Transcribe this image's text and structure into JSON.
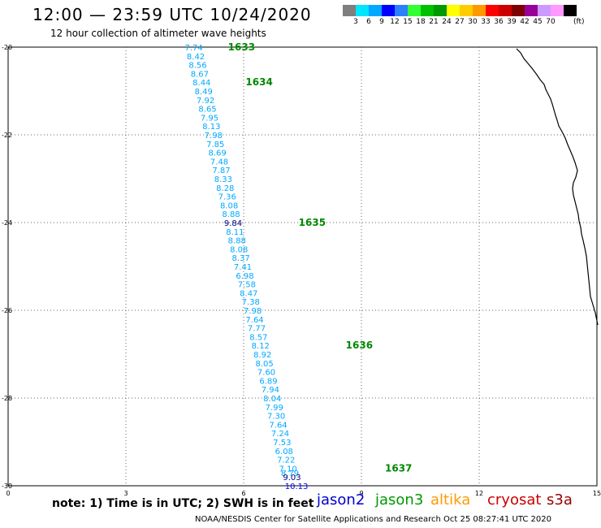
{
  "title": "12:00 — 23:59 UTC 10/24/2020",
  "subtitle": "12 hour collection of altimeter wave heights",
  "legend": {
    "colors": [
      "#7f7f7f",
      "#00e5ff",
      "#00a8ff",
      "#0000ff",
      "#2a80ff",
      "#33ff33",
      "#00c000",
      "#009900",
      "#ffff00",
      "#ffcc00",
      "#ff9900",
      "#ff0000",
      "#cc0000",
      "#800000",
      "#990099",
      "#cc99ff",
      "#ff99ff",
      "#000000"
    ],
    "labels": [
      "3",
      "6",
      "9",
      "12",
      "15",
      "18",
      "21",
      "24",
      "27",
      "30",
      "33",
      "36",
      "39",
      "42",
      "45",
      "70"
    ],
    "unit": "(ft)"
  },
  "axes": {
    "x_ticks": [
      "0",
      "3",
      "6",
      "9",
      "12",
      "15"
    ],
    "y_ticks": [
      "-20",
      "-22",
      "-24",
      "-26",
      "-28",
      "-30"
    ]
  },
  "chart_data": {
    "type": "scatter",
    "xlim": [
      0,
      15
    ],
    "ylim": [
      -30,
      -20
    ],
    "grid": true,
    "points": [
      {
        "x": 4.5,
        "y": -20.0,
        "v": "7.74",
        "c": "#00a8ff"
      },
      {
        "x": 4.55,
        "y": -20.2,
        "v": "8.42",
        "c": "#00a8ff"
      },
      {
        "x": 4.6,
        "y": -20.4,
        "v": "8.56",
        "c": "#00a8ff"
      },
      {
        "x": 4.65,
        "y": -20.6,
        "v": "8.67",
        "c": "#00a8ff"
      },
      {
        "x": 4.7,
        "y": -20.8,
        "v": "8.44",
        "c": "#00a8ff"
      },
      {
        "x": 4.75,
        "y": -21.0,
        "v": "8.49",
        "c": "#00a8ff"
      },
      {
        "x": 4.8,
        "y": -21.2,
        "v": "7.92",
        "c": "#00a8ff"
      },
      {
        "x": 4.85,
        "y": -21.4,
        "v": "8.65",
        "c": "#00a8ff"
      },
      {
        "x": 4.9,
        "y": -21.6,
        "v": "7.95",
        "c": "#00a8ff"
      },
      {
        "x": 4.95,
        "y": -21.8,
        "v": "8.13",
        "c": "#00a8ff"
      },
      {
        "x": 5.0,
        "y": -22.0,
        "v": "7.98",
        "c": "#00a8ff"
      },
      {
        "x": 5.05,
        "y": -22.2,
        "v": "7.85",
        "c": "#00a8ff"
      },
      {
        "x": 5.1,
        "y": -22.4,
        "v": "8.69",
        "c": "#00a8ff"
      },
      {
        "x": 5.15,
        "y": -22.6,
        "v": "7.48",
        "c": "#00a8ff"
      },
      {
        "x": 5.2,
        "y": -22.8,
        "v": "7.87",
        "c": "#00a8ff"
      },
      {
        "x": 5.25,
        "y": -23.0,
        "v": "8.33",
        "c": "#00a8ff"
      },
      {
        "x": 5.3,
        "y": -23.2,
        "v": "8.28",
        "c": "#00a8ff"
      },
      {
        "x": 5.35,
        "y": -23.4,
        "v": "7.36",
        "c": "#00a8ff"
      },
      {
        "x": 5.4,
        "y": -23.6,
        "v": "8.08",
        "c": "#00a8ff"
      },
      {
        "x": 5.45,
        "y": -23.8,
        "v": "8.88",
        "c": "#00a8ff"
      },
      {
        "x": 5.5,
        "y": -24.0,
        "v": "9.84",
        "c": "#000080"
      },
      {
        "x": 5.55,
        "y": -24.2,
        "v": "8.11",
        "c": "#00a8ff"
      },
      {
        "x": 5.6,
        "y": -24.4,
        "v": "8.88",
        "c": "#00a8ff"
      },
      {
        "x": 5.65,
        "y": -24.6,
        "v": "8.08",
        "c": "#00a8ff"
      },
      {
        "x": 5.7,
        "y": -24.8,
        "v": "8.37",
        "c": "#00a8ff"
      },
      {
        "x": 5.75,
        "y": -25.0,
        "v": "7.41",
        "c": "#00a8ff"
      },
      {
        "x": 5.8,
        "y": -25.2,
        "v": "6.98",
        "c": "#00a8ff"
      },
      {
        "x": 5.85,
        "y": -25.4,
        "v": "7.58",
        "c": "#00a8ff"
      },
      {
        "x": 5.9,
        "y": -25.6,
        "v": "8.47",
        "c": "#00a8ff"
      },
      {
        "x": 5.95,
        "y": -25.8,
        "v": "7.38",
        "c": "#00a8ff"
      },
      {
        "x": 6.0,
        "y": -26.0,
        "v": "7.98",
        "c": "#00a8ff"
      },
      {
        "x": 6.05,
        "y": -26.2,
        "v": "7.64",
        "c": "#00a8ff"
      },
      {
        "x": 6.1,
        "y": -26.4,
        "v": "7.77",
        "c": "#00a8ff"
      },
      {
        "x": 6.15,
        "y": -26.6,
        "v": "8.57",
        "c": "#00a8ff"
      },
      {
        "x": 6.2,
        "y": -26.8,
        "v": "8.12",
        "c": "#00a8ff"
      },
      {
        "x": 6.25,
        "y": -27.0,
        "v": "8.92",
        "c": "#00a8ff"
      },
      {
        "x": 6.3,
        "y": -27.2,
        "v": "8.05",
        "c": "#00a8ff"
      },
      {
        "x": 6.35,
        "y": -27.4,
        "v": "7.60",
        "c": "#00a8ff"
      },
      {
        "x": 6.4,
        "y": -27.6,
        "v": "6.89",
        "c": "#00a8ff"
      },
      {
        "x": 6.45,
        "y": -27.8,
        "v": "7.94",
        "c": "#00a8ff"
      },
      {
        "x": 6.5,
        "y": -28.0,
        "v": "8.04",
        "c": "#00a8ff"
      },
      {
        "x": 6.55,
        "y": -28.2,
        "v": "7.99",
        "c": "#00a8ff"
      },
      {
        "x": 6.6,
        "y": -28.4,
        "v": "7.30",
        "c": "#00a8ff"
      },
      {
        "x": 6.65,
        "y": -28.6,
        "v": "7.64",
        "c": "#00a8ff"
      },
      {
        "x": 6.7,
        "y": -28.8,
        "v": "7.24",
        "c": "#00a8ff"
      },
      {
        "x": 6.75,
        "y": -29.0,
        "v": "7.53",
        "c": "#00a8ff"
      },
      {
        "x": 6.8,
        "y": -29.2,
        "v": "6.08",
        "c": "#00a8ff"
      },
      {
        "x": 6.85,
        "y": -29.4,
        "v": "7.22",
        "c": "#00a8ff"
      },
      {
        "x": 6.9,
        "y": -29.6,
        "v": "7.10",
        "c": "#00a8ff"
      },
      {
        "x": 6.95,
        "y": -29.7,
        "v": "8.79",
        "c": "#00a8ff"
      },
      {
        "x": 7.0,
        "y": -29.8,
        "v": "9.03",
        "c": "#000080"
      },
      {
        "x": 7.05,
        "y": -30.0,
        "v": "10.13",
        "c": "#0000ff"
      }
    ],
    "pass_labels": [
      {
        "x": 5.6,
        "y": -20.0,
        "text": "1633"
      },
      {
        "x": 6.05,
        "y": -20.8,
        "text": "1634"
      },
      {
        "x": 7.4,
        "y": -24.0,
        "text": "1635"
      },
      {
        "x": 8.6,
        "y": -26.8,
        "text": "1636"
      },
      {
        "x": 9.6,
        "y": -29.6,
        "text": "1637"
      }
    ]
  },
  "note": "note: 1) Time is in UTC; 2) SWH is in feet",
  "satellites": [
    {
      "name": "jason2",
      "color": "#0000cc"
    },
    {
      "name": "jason3",
      "color": "#009900"
    },
    {
      "name": "altika",
      "color": "#ff9900"
    },
    {
      "name": "cryosat",
      "color": "#cc0000"
    },
    {
      "name": "s3a",
      "color": "#990000"
    }
  ],
  "footer": "NOAA/NESDIS Center for Satellite Applications and Research    Oct 25 08:27:41 UTC 2020"
}
